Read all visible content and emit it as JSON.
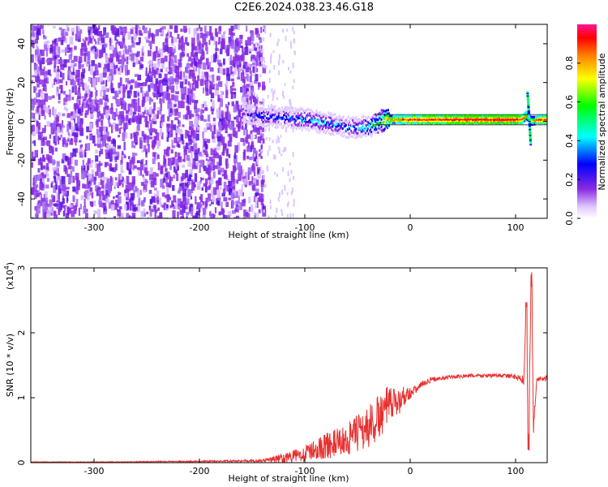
{
  "title": "C2E6.2024.038.23.46.G18",
  "chart_data": [
    {
      "type": "heatmap",
      "xlabel": "Height of straight line (km)",
      "ylabel": "Frequency (Hz)",
      "xlim": [
        -360,
        130
      ],
      "ylim": [
        -50,
        50
      ],
      "x_ticks": [
        -300,
        -200,
        -100,
        0,
        100
      ],
      "y_ticks": [
        -40,
        -20,
        0,
        20,
        40
      ],
      "colorbar": {
        "label": "Normalized spectral amplitude",
        "range": [
          0.0,
          1.0
        ],
        "ticks": [
          0.0,
          0.2,
          0.4,
          0.6,
          0.8
        ],
        "colormap": [
          "#ffffff",
          "#e0c8ff",
          "#8a2be2",
          "#0000ff",
          "#00ffff",
          "#00ff00",
          "#ffff00",
          "#ff7f00",
          "#ff0000",
          "#ff1493"
        ]
      },
      "ridge": {
        "x": [
          -160,
          -140,
          -120,
          -100,
          -80,
          -60,
          -40,
          -30,
          -20,
          0,
          50,
          100,
          105,
          110,
          115,
          120,
          130
        ],
        "y": [
          4,
          3,
          2,
          1,
          -1,
          -3,
          -3,
          0,
          1,
          1,
          1,
          1,
          1,
          3,
          0,
          1,
          1
        ],
        "amplitude": [
          0.3,
          0.4,
          0.4,
          0.45,
          0.45,
          0.4,
          0.5,
          0.6,
          0.8,
          0.9,
          0.95,
          0.95,
          0.9,
          0.8,
          0.7,
          0.9,
          0.9
        ]
      },
      "noise_region_x": [
        -360,
        -150
      ]
    },
    {
      "type": "line",
      "xlabel": "Height of straight line (km)",
      "ylabel": "SNR (10 * v/v)",
      "yscale_label": "(x10",
      "yscale_exp": "4",
      "y_unit_factor": 10000,
      "xlim": [
        -360,
        130
      ],
      "ylim": [
        0,
        3
      ],
      "x_ticks": [
        -300,
        -200,
        -100,
        0,
        100
      ],
      "y_ticks": [
        0,
        1,
        2,
        3
      ],
      "color": "#e83030",
      "series": [
        {
          "x": [
            -360,
            -300,
            -200,
            -140,
            -130,
            -120,
            -110,
            -100,
            -90,
            -80,
            -70,
            -60,
            -50,
            -40,
            -35,
            -30,
            -25,
            -20,
            -15,
            -10,
            -5,
            0,
            5,
            10,
            20,
            30,
            40,
            50,
            60,
            70,
            80,
            90,
            100,
            105,
            108,
            110,
            112,
            115,
            117,
            120,
            125,
            130
          ],
          "y": [
            0.01,
            0.01,
            0.02,
            0.03,
            0.05,
            0.07,
            0.1,
            0.14,
            0.2,
            0.26,
            0.3,
            0.35,
            0.45,
            0.55,
            0.6,
            0.7,
            0.8,
            0.88,
            0.9,
            0.95,
            1.05,
            1.08,
            1.12,
            1.2,
            1.28,
            1.3,
            1.32,
            1.33,
            1.34,
            1.34,
            1.34,
            1.34,
            1.32,
            1.3,
            1.25,
            2.55,
            0.3,
            3.0,
            0.5,
            1.3,
            1.28,
            1.3
          ],
          "noise": [
            0.005,
            0.005,
            0.01,
            0.02,
            0.05,
            0.08,
            0.1,
            0.12,
            0.15,
            0.2,
            0.22,
            0.25,
            0.3,
            0.35,
            0.35,
            0.35,
            0.35,
            0.3,
            0.25,
            0.2,
            0.15,
            0.1,
            0.06,
            0.05,
            0.04,
            0.03,
            0.03,
            0.03,
            0.03,
            0.03,
            0.03,
            0.03,
            0.04,
            0.06,
            0.1,
            0.1,
            0.1,
            0.1,
            0.1,
            0.05,
            0.04,
            0.04
          ]
        }
      ]
    }
  ]
}
